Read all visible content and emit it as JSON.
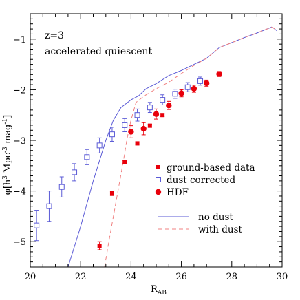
{
  "chart_data": {
    "type": "scatter",
    "title": "",
    "annotations": [
      "z=3",
      "accelerated quiescent"
    ],
    "xlabel": {
      "main": "R",
      "sub": "AB"
    },
    "ylabel": {
      "prefix": "φ[h",
      "e1": "3",
      "mid": " Mpc",
      "e2": "-3",
      "mid2": " mag",
      "e3": "-1",
      "suffix": "]"
    },
    "xlim": [
      20,
      30
    ],
    "ylim": [
      -5.5,
      -0.5
    ],
    "xticks": [
      20,
      22,
      24,
      26,
      28,
      30
    ],
    "xtick_labels": [
      "20",
      "22",
      "24",
      "26",
      "28",
      "30"
    ],
    "yticks": [
      -5,
      -4,
      -3,
      -2,
      -1
    ],
    "ytick_labels": [
      "−5",
      "−4",
      "−3",
      "−2",
      "−1"
    ],
    "legend_position": "right-center",
    "series": [
      {
        "name": "ground-based data",
        "marker": "filled-square",
        "color": "#e8000b",
        "x": [
          22.75,
          23.25,
          23.75,
          24.25,
          24.75,
          25.25
        ],
        "y": [
          -5.08,
          -4.05,
          -3.43,
          -3.06,
          -2.71,
          -2.5
        ],
        "yerr": [
          0.08,
          0.04,
          0.03,
          0.03,
          0.03,
          0.03
        ]
      },
      {
        "name": "dust corrected",
        "marker": "open-square",
        "color": "#5a5ad6",
        "x": [
          20.25,
          20.75,
          21.25,
          21.75,
          22.25,
          22.75,
          23.25,
          23.75,
          24.25,
          24.75,
          25.25,
          25.75,
          26.25,
          26.75
        ],
        "y": [
          -4.68,
          -4.3,
          -3.92,
          -3.63,
          -3.33,
          -3.1,
          -2.88,
          -2.7,
          -2.5,
          -2.35,
          -2.2,
          -2.08,
          -1.95,
          -1.83
        ],
        "yerr": [
          0.3,
          0.3,
          0.2,
          0.17,
          0.15,
          0.15,
          0.14,
          0.13,
          0.12,
          0.1,
          0.1,
          0.09,
          0.09,
          0.08
        ]
      },
      {
        "name": "HDF",
        "marker": "filled-circle",
        "color": "#e8000b",
        "x": [
          24.0,
          24.5,
          25.0,
          25.5,
          26.0,
          26.5,
          27.0,
          27.5
        ],
        "y": [
          -2.83,
          -2.77,
          -2.48,
          -2.31,
          -2.07,
          -1.98,
          -1.87,
          -1.69
        ],
        "yerr": [
          0.12,
          0.12,
          0.1,
          0.08,
          0.07,
          0.07,
          0.06,
          0.05
        ]
      },
      {
        "name": "no dust",
        "line_style": "solid",
        "color": "#5a5ad6",
        "x": [
          21.5,
          22.0,
          22.5,
          23.0,
          23.3,
          23.6,
          24.0,
          24.3,
          24.6,
          25.0,
          25.5,
          26.0,
          26.5,
          27.0,
          27.5,
          28.0,
          28.5,
          29.0,
          29.4,
          29.6,
          29.8
        ],
        "y": [
          -5.5,
          -4.7,
          -3.8,
          -3.0,
          -2.6,
          -2.35,
          -2.2,
          -2.12,
          -1.98,
          -1.88,
          -1.72,
          -1.62,
          -1.5,
          -1.38,
          -1.17,
          -1.07,
          -0.97,
          -0.88,
          -0.8,
          -0.76,
          -0.84
        ]
      },
      {
        "name": "with dust",
        "line_style": "dashed",
        "color": "#f08080",
        "x": [
          22.95,
          23.1,
          23.3,
          23.5,
          23.7,
          23.85,
          24.0,
          24.2,
          24.5,
          25.0,
          25.5,
          26.0,
          26.5,
          27.0,
          27.5,
          28.0,
          28.5,
          29.0,
          29.4,
          29.6,
          29.8
        ],
        "y": [
          -5.5,
          -5.05,
          -4.5,
          -3.95,
          -3.4,
          -2.95,
          -2.6,
          -2.25,
          -2.13,
          -1.98,
          -1.85,
          -1.68,
          -1.52,
          -1.38,
          -1.17,
          -1.07,
          -0.97,
          -0.88,
          -0.8,
          -0.76,
          -0.84
        ]
      }
    ]
  }
}
